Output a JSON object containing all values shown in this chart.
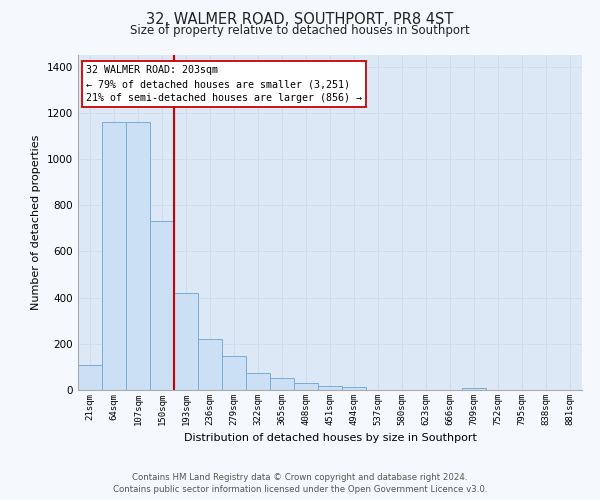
{
  "title": "32, WALMER ROAD, SOUTHPORT, PR8 4ST",
  "subtitle": "Size of property relative to detached houses in Southport",
  "xlabel": "Distribution of detached houses by size in Southport",
  "ylabel": "Number of detached properties",
  "categories": [
    "21sqm",
    "64sqm",
    "107sqm",
    "150sqm",
    "193sqm",
    "236sqm",
    "279sqm",
    "322sqm",
    "365sqm",
    "408sqm",
    "451sqm",
    "494sqm",
    "537sqm",
    "580sqm",
    "623sqm",
    "666sqm",
    "709sqm",
    "752sqm",
    "795sqm",
    "838sqm",
    "881sqm"
  ],
  "values": [
    108,
    1160,
    1160,
    730,
    420,
    222,
    148,
    75,
    50,
    32,
    18,
    14,
    0,
    0,
    0,
    0,
    10,
    0,
    0,
    0,
    0
  ],
  "bar_color": "#cce0f5",
  "bar_edge_color": "#7aadd4",
  "vline_color": "#cc0000",
  "annotation_text": "32 WALMER ROAD: 203sqm\n← 79% of detached houses are smaller (3,251)\n21% of semi-detached houses are larger (856) →",
  "annotation_box_color": "#ffffff",
  "annotation_box_edge": "#cc0000",
  "ylim": [
    0,
    1450
  ],
  "yticks": [
    0,
    200,
    400,
    600,
    800,
    1000,
    1200,
    1400
  ],
  "grid_color": "#d0dce8",
  "plot_bg_color": "#dce8f5",
  "fig_bg_color": "#f5f8fc",
  "footer_line1": "Contains HM Land Registry data © Crown copyright and database right 2024.",
  "footer_line2": "Contains public sector information licensed under the Open Government Licence v3.0."
}
